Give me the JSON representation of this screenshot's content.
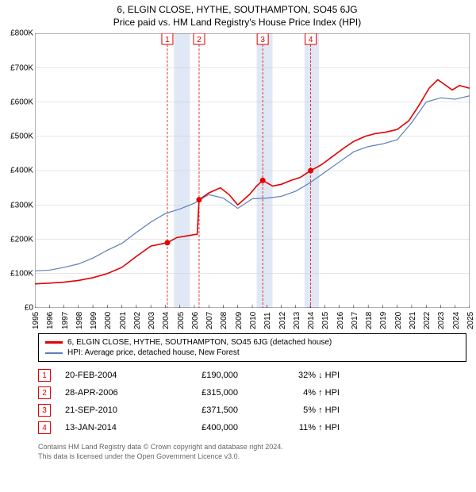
{
  "titles": {
    "line1": "6, ELGIN CLOSE, HYTHE, SOUTHAMPTON, SO45 6JG",
    "line2": "Price paid vs. HM Land Registry's House Price Index (HPI)"
  },
  "chart": {
    "type": "line",
    "background_color": "#ffffff",
    "grid_color": "#cccccc",
    "band_color": "#e1e8f5",
    "marker_line_color": "#e20000",
    "title_fontsize": 12,
    "axis_fontsize": 10,
    "x": {
      "min": 1995,
      "max": 2025,
      "ticks": [
        1995,
        1996,
        1997,
        1998,
        1999,
        2000,
        2001,
        2002,
        2003,
        2004,
        2005,
        2006,
        2007,
        2008,
        2009,
        2010,
        2011,
        2012,
        2013,
        2014,
        2015,
        2016,
        2017,
        2018,
        2019,
        2020,
        2021,
        2022,
        2023,
        2024,
        2025
      ]
    },
    "y": {
      "min": 0,
      "max": 800000,
      "tick_step": 100000,
      "labels": [
        "£0",
        "£100K",
        "£200K",
        "£300K",
        "£400K",
        "£500K",
        "£600K",
        "£700K",
        "£800K"
      ]
    },
    "bands": [
      {
        "from": 2004.6,
        "to": 2005.7
      },
      {
        "from": 2010.3,
        "to": 2011.4
      },
      {
        "from": 2013.6,
        "to": 2014.6
      }
    ],
    "event_lines": [
      2004.14,
      2006.33,
      2010.72,
      2014.03
    ],
    "event_labels": [
      "1",
      "2",
      "3",
      "4"
    ],
    "series": [
      {
        "name": "price_paid",
        "label": "6, ELGIN CLOSE, HYTHE, SOUTHAMPTON, SO45 6JG (detached house)",
        "color": "#e20000",
        "width": 1.6,
        "points": [
          [
            1995,
            70000
          ],
          [
            1996,
            72000
          ],
          [
            1997,
            75000
          ],
          [
            1998,
            80000
          ],
          [
            1999,
            88000
          ],
          [
            2000,
            100000
          ],
          [
            2001,
            118000
          ],
          [
            2002,
            150000
          ],
          [
            2003,
            180000
          ],
          [
            2004.14,
            190000
          ],
          [
            2004.8,
            205000
          ],
          [
            2005.5,
            210000
          ],
          [
            2006.2,
            215000
          ],
          [
            2006.33,
            315000
          ],
          [
            2007,
            335000
          ],
          [
            2007.8,
            350000
          ],
          [
            2008.4,
            330000
          ],
          [
            2009,
            300000
          ],
          [
            2009.8,
            330000
          ],
          [
            2010.3,
            355000
          ],
          [
            2010.72,
            371500
          ],
          [
            2011.4,
            355000
          ],
          [
            2012,
            360000
          ],
          [
            2012.7,
            372000
          ],
          [
            2013.3,
            380000
          ],
          [
            2014.03,
            400000
          ],
          [
            2014.8,
            418000
          ],
          [
            2015.5,
            440000
          ],
          [
            2016.3,
            465000
          ],
          [
            2017,
            485000
          ],
          [
            2017.8,
            500000
          ],
          [
            2018.5,
            508000
          ],
          [
            2019.2,
            512000
          ],
          [
            2020,
            520000
          ],
          [
            2020.8,
            545000
          ],
          [
            2021.5,
            590000
          ],
          [
            2022.2,
            640000
          ],
          [
            2022.8,
            665000
          ],
          [
            2023.3,
            650000
          ],
          [
            2023.8,
            635000
          ],
          [
            2024.3,
            648000
          ],
          [
            2025,
            640000
          ]
        ]
      },
      {
        "name": "hpi",
        "label": "HPI: Average price, detached house, New Forest",
        "color": "#5b7fb8",
        "width": 1.2,
        "points": [
          [
            1995,
            108000
          ],
          [
            1996,
            110000
          ],
          [
            1997,
            118000
          ],
          [
            1998,
            128000
          ],
          [
            1999,
            145000
          ],
          [
            2000,
            168000
          ],
          [
            2001,
            188000
          ],
          [
            2002,
            220000
          ],
          [
            2003,
            250000
          ],
          [
            2004,
            275000
          ],
          [
            2005,
            288000
          ],
          [
            2006,
            305000
          ],
          [
            2007,
            330000
          ],
          [
            2008,
            320000
          ],
          [
            2009,
            290000
          ],
          [
            2010,
            318000
          ],
          [
            2011,
            320000
          ],
          [
            2012,
            325000
          ],
          [
            2013,
            340000
          ],
          [
            2014,
            365000
          ],
          [
            2015,
            395000
          ],
          [
            2016,
            425000
          ],
          [
            2017,
            455000
          ],
          [
            2018,
            470000
          ],
          [
            2019,
            478000
          ],
          [
            2020,
            490000
          ],
          [
            2021,
            540000
          ],
          [
            2022,
            600000
          ],
          [
            2023,
            612000
          ],
          [
            2024,
            608000
          ],
          [
            2025,
            618000
          ]
        ]
      }
    ],
    "sale_markers": [
      {
        "x": 2004.14,
        "y": 190000
      },
      {
        "x": 2006.33,
        "y": 315000
      },
      {
        "x": 2010.72,
        "y": 371500
      },
      {
        "x": 2014.03,
        "y": 400000
      }
    ]
  },
  "legend": {
    "items": [
      {
        "color": "#e20000",
        "width": 2,
        "label": "6, ELGIN CLOSE, HYTHE, SOUTHAMPTON, SO45 6JG (detached house)"
      },
      {
        "color": "#5b7fb8",
        "width": 1,
        "label": "HPI: Average price, detached house, New Forest"
      }
    ]
  },
  "table": {
    "rows": [
      {
        "n": "1",
        "date": "20-FEB-2004",
        "price": "£190,000",
        "pct": "32% ↓ HPI"
      },
      {
        "n": "2",
        "date": "28-APR-2006",
        "price": "£315,000",
        "pct": "4% ↑ HPI"
      },
      {
        "n": "3",
        "date": "21-SEP-2010",
        "price": "£371,500",
        "pct": "5% ↑ HPI"
      },
      {
        "n": "4",
        "date": "13-JAN-2014",
        "price": "£400,000",
        "pct": "11% ↑ HPI"
      }
    ]
  },
  "footer": {
    "line1": "Contains HM Land Registry data © Crown copyright and database right 2024.",
    "line2": "This data is licensed under the Open Government Licence v3.0."
  }
}
